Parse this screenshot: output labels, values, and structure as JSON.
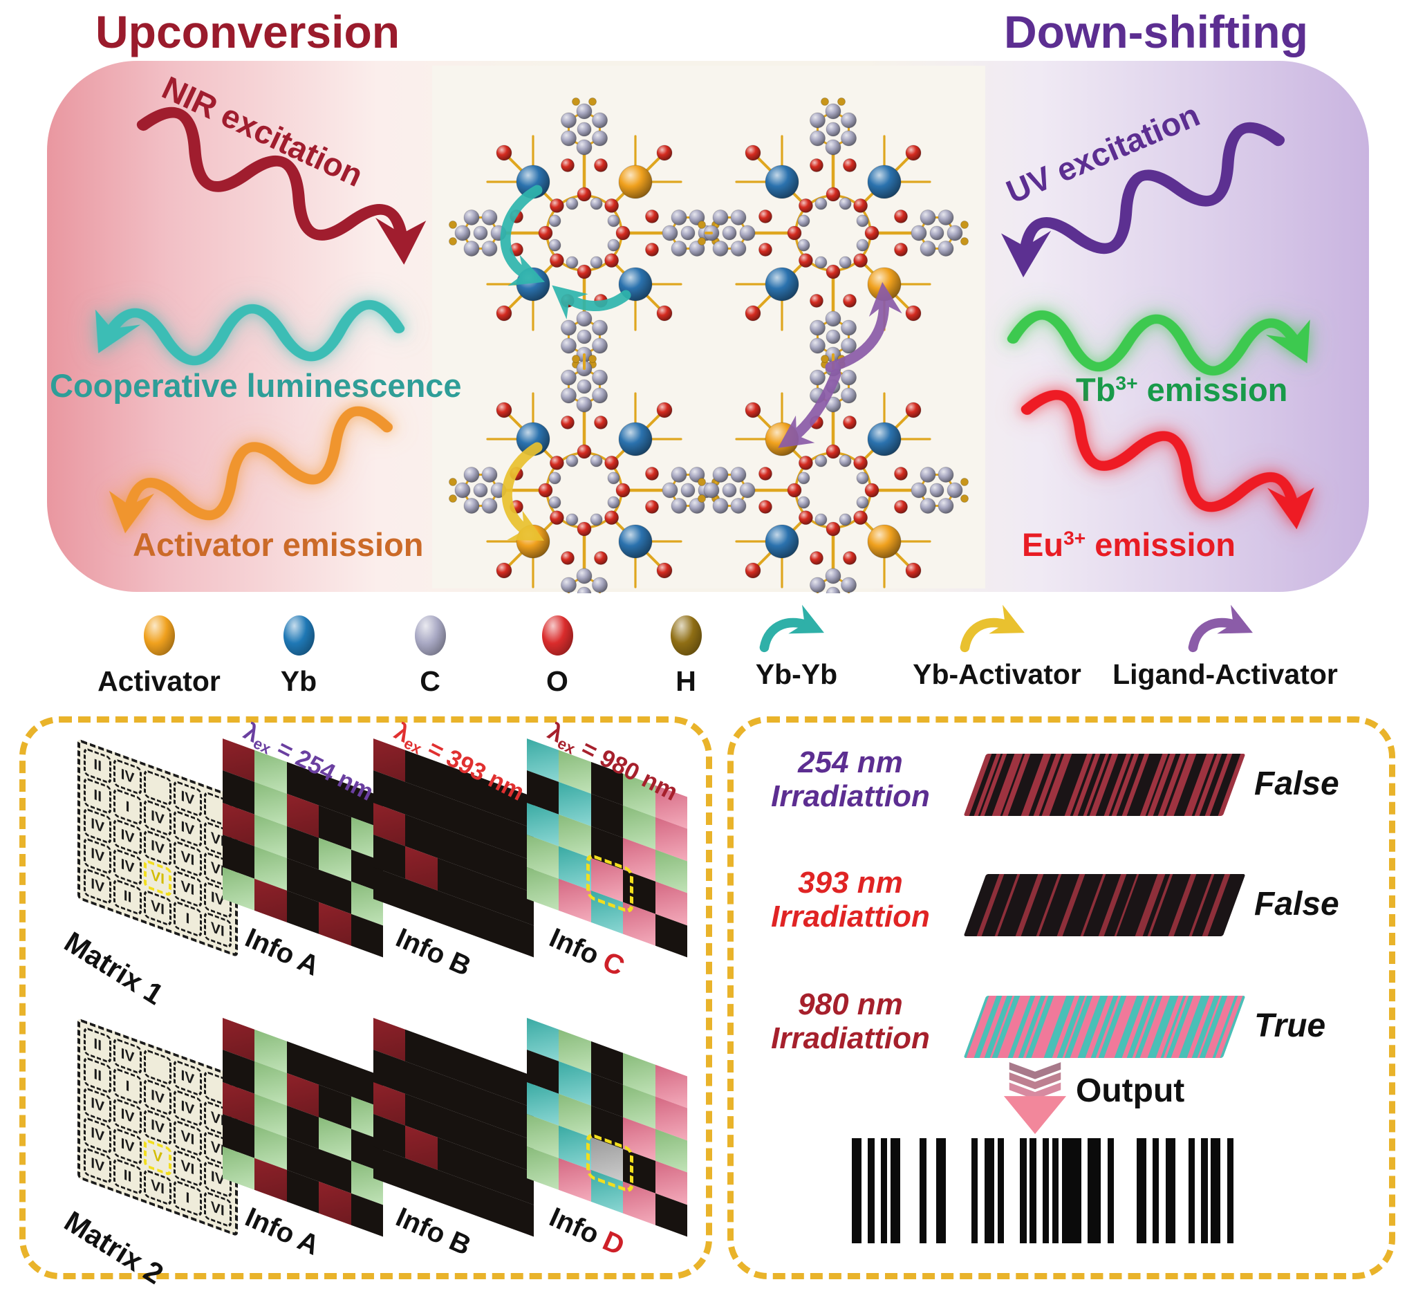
{
  "figure": {
    "titles": {
      "upconversion": "Upconversion",
      "down_shifting": "Down-shifting"
    },
    "colors": {
      "upconversion": "#9A1B2C",
      "down_shifting": "#5C2E91",
      "nir": "#A01D2E",
      "cooperative": "#2E9E98",
      "activator_emission": "#CB6A28",
      "uv": "#5C2E91",
      "tb_emission": "#189A4A",
      "eu_emission": "#E81C24",
      "panel_border": "#E9B32A",
      "banner_left": "#E997A0",
      "banner_right": "#C9B4E0"
    },
    "annotations": {
      "nir_excitation": "NIR excitation",
      "cooperative_luminescence": "Cooperative luminescence",
      "activator_emission": "Activator emission",
      "uv_excitation": "UV excitation",
      "tb_emission": {
        "base": "Tb",
        "sup": "3+",
        "rest": " emission"
      },
      "eu_emission": {
        "base": "Eu",
        "sup": "3+",
        "rest": " emission"
      }
    }
  },
  "legend": {
    "atoms": [
      {
        "label": "Activator",
        "color": "#F0A11E"
      },
      {
        "label": "Yb",
        "color": "#1F78B5"
      },
      {
        "label": "C",
        "color": "#A9A9C4"
      },
      {
        "label": "O",
        "color": "#DA2C2C"
      },
      {
        "label": "H",
        "color": "#8F6E14"
      }
    ],
    "arrows": [
      {
        "label": "Yb-Yb",
        "color": "#2FB0A8"
      },
      {
        "label": "Yb-Activator",
        "color": "#E9C12F"
      },
      {
        "label": "Ligand-Activator",
        "color": "#8B5CA8"
      }
    ]
  },
  "encode_panel": {
    "cell_colors": {
      "R": "#8E2129",
      "G": "#97D088",
      "K": "#17120F",
      "T": "#3FBDB5",
      "P": "#EC7490",
      "X": "#ABABAB"
    },
    "rows": [
      [
        {
          "type": "matrix",
          "label": "Matrix 1",
          "highlight": {
            "row": 3,
            "col": 2
          },
          "cells": [
            [
              "II",
              "IV",
              "",
              "IV",
              ""
            ],
            [
              "II",
              "I",
              "IV",
              "IV",
              "VI"
            ],
            [
              "IV",
              "IV",
              "IV",
              "VI",
              "VI"
            ],
            [
              "IV",
              "IV",
              "VI",
              "VI",
              "IV"
            ],
            [
              "IV",
              "II",
              "VI",
              "I",
              "VI"
            ]
          ]
        },
        {
          "type": "info",
          "label_prefix": "Info ",
          "letter": "A",
          "letter_color": "#111111",
          "lambda": {
            "sym": "λ",
            "sub": "ex",
            "eq": " = 254 nm"
          },
          "lambda_color": "#6A3FA0",
          "cells": [
            [
              "R",
              "G",
              "K",
              "K",
              "K"
            ],
            [
              "K",
              "G",
              "R",
              "K",
              "G"
            ],
            [
              "R",
              "G",
              "K",
              "G",
              "K"
            ],
            [
              "K",
              "G",
              "K",
              "K",
              "G"
            ],
            [
              "G",
              "R",
              "K",
              "R",
              "K"
            ]
          ]
        },
        {
          "type": "info",
          "label_prefix": "Info ",
          "letter": "B",
          "letter_color": "#111111",
          "lambda": {
            "sym": "λ",
            "sub": "ex",
            "eq": " = 393 nm"
          },
          "lambda_color": "#E03030",
          "cells": [
            [
              "R",
              "K",
              "K",
              "K",
              "K"
            ],
            [
              "K",
              "K",
              "K",
              "K",
              "K"
            ],
            [
              "R",
              "K",
              "K",
              "K",
              "K"
            ],
            [
              "K",
              "R",
              "K",
              "K",
              "K"
            ],
            [
              "K",
              "K",
              "K",
              "K",
              "K"
            ]
          ]
        },
        {
          "type": "info",
          "label_prefix": "Info ",
          "letter": "C",
          "letter_color": "#CE2028",
          "lambda": {
            "sym": "λ",
            "sub": "ex",
            "eq": " = 980 nm"
          },
          "lambda_color": "#A6202C",
          "highlight": {
            "row": 3,
            "col": 2
          },
          "cells": [
            [
              "T",
              "G",
              "K",
              "G",
              "P"
            ],
            [
              "K",
              "T",
              "K",
              "G",
              "P"
            ],
            [
              "T",
              "G",
              "K",
              "P",
              "G"
            ],
            [
              "G",
              "T",
              "P",
              "K",
              "P"
            ],
            [
              "G",
              "P",
              "T",
              "P",
              "K"
            ]
          ]
        }
      ],
      [
        {
          "type": "matrix",
          "label": "Matrix 2",
          "highlight": {
            "row": 3,
            "col": 2
          },
          "cells": [
            [
              "II",
              "IV",
              "",
              "IV",
              ""
            ],
            [
              "II",
              "I",
              "IV",
              "IV",
              "VI"
            ],
            [
              "IV",
              "IV",
              "IV",
              "VI",
              "VI"
            ],
            [
              "IV",
              "IV",
              "V",
              "VI",
              "IV"
            ],
            [
              "IV",
              "II",
              "VI",
              "I",
              "VI"
            ]
          ]
        },
        {
          "type": "info",
          "label_prefix": "Info ",
          "letter": "A",
          "letter_color": "#111111",
          "cells": [
            [
              "R",
              "G",
              "K",
              "K",
              "K"
            ],
            [
              "K",
              "G",
              "R",
              "K",
              "G"
            ],
            [
              "R",
              "G",
              "K",
              "G",
              "K"
            ],
            [
              "K",
              "G",
              "K",
              "K",
              "G"
            ],
            [
              "G",
              "R",
              "K",
              "R",
              "K"
            ]
          ]
        },
        {
          "type": "info",
          "label_prefix": "Info ",
          "letter": "B",
          "letter_color": "#111111",
          "cells": [
            [
              "R",
              "K",
              "K",
              "K",
              "K"
            ],
            [
              "K",
              "K",
              "K",
              "K",
              "K"
            ],
            [
              "R",
              "K",
              "K",
              "K",
              "K"
            ],
            [
              "K",
              "R",
              "K",
              "K",
              "K"
            ],
            [
              "K",
              "K",
              "K",
              "K",
              "K"
            ]
          ]
        },
        {
          "type": "info",
          "label_prefix": "Info ",
          "letter": "D",
          "letter_color": "#CE2028",
          "highlight": {
            "row": 3,
            "col": 2
          },
          "cells": [
            [
              "T",
              "G",
              "K",
              "G",
              "P"
            ],
            [
              "K",
              "T",
              "K",
              "G",
              "P"
            ],
            [
              "T",
              "G",
              "K",
              "P",
              "G"
            ],
            [
              "G",
              "T",
              "X",
              "K",
              "P"
            ],
            [
              "G",
              "P",
              "T",
              "P",
              "K"
            ]
          ]
        }
      ]
    ]
  },
  "reader_panel": {
    "rows": [
      {
        "wavelength": "254 nm",
        "word": "Irradiattion",
        "label_color": "#5C2E91",
        "result": "False",
        "base_color": "#9E3340",
        "stripe_color": "#1A1416"
      },
      {
        "wavelength": "393 nm",
        "word": "Irradiattion",
        "label_color": "#E02424",
        "result": "False",
        "base_color": "#1A1416",
        "stripe_color": "#8E2F3A"
      },
      {
        "wavelength": "980 nm",
        "word": "Irradiattion",
        "label_color": "#A6202C",
        "result": "True",
        "base_color": "#4ABFB7",
        "stripe_color": "#F0799A"
      }
    ],
    "output_label": "Output"
  }
}
